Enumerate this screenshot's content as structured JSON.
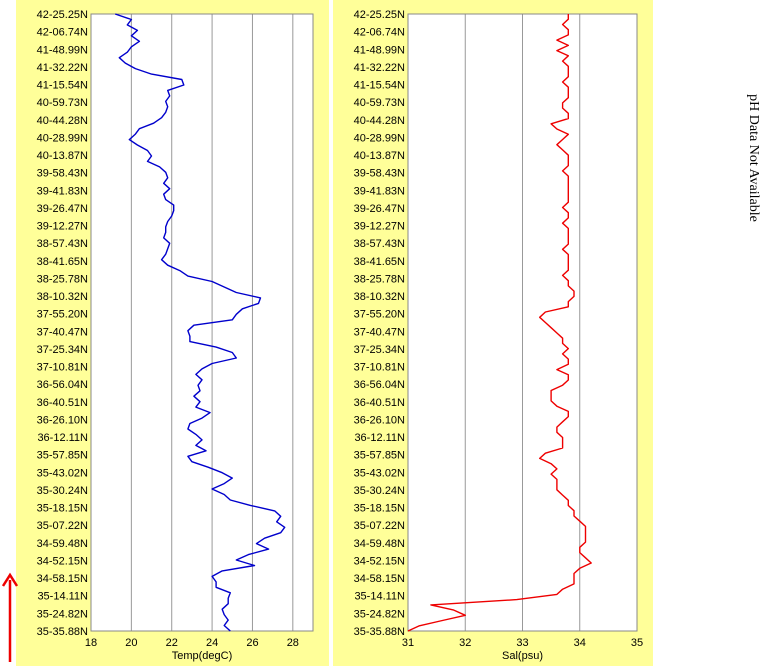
{
  "note": "pH Data Not Available",
  "colors": {
    "panel_bg": "#ffff99",
    "temp_line": "#0000cc",
    "sal_line": "#ee0000",
    "grid": "#999999",
    "arrow": "#ee0000"
  },
  "lat_labels": [
    "42-25.25N",
    "42-06.74N",
    "41-48.99N",
    "41-32.22N",
    "41-15.54N",
    "40-59.73N",
    "40-44.28N",
    "40-28.99N",
    "40-13.87N",
    "39-58.43N",
    "39-41.83N",
    "39-26.47N",
    "39-12.27N",
    "38-57.43N",
    "38-41.65N",
    "38-25.78N",
    "38-10.32N",
    "37-55.20N",
    "37-40.47N",
    "37-25.34N",
    "37-10.81N",
    "36-56.04N",
    "36-40.51N",
    "36-26.10N",
    "36-12.11N",
    "35-57.85N",
    "35-43.02N",
    "35-30.24N",
    "35-18.15N",
    "35-07.22N",
    "34-59.48N",
    "34-52.15N",
    "34-58.15N",
    "35-14.11N",
    "35-24.82N",
    "35-35.88N"
  ],
  "chart_data": [
    {
      "type": "line",
      "xlabel": "Temp(degC)",
      "xlim": [
        18,
        29
      ],
      "xticks": [
        "18",
        "20",
        "22",
        "24",
        "26",
        "28"
      ],
      "grid": "vertical",
      "series": [
        {
          "values": [
            19.2,
            20.0,
            19.8,
            20.3,
            20.0,
            20.4,
            20.0,
            19.8,
            19.4,
            19.7,
            20.2,
            21.0,
            22.5,
            22.6,
            21.8,
            21.9,
            21.7,
            21.8,
            21.7,
            21.5,
            21.1,
            20.4,
            20.2,
            19.9,
            20.3,
            20.8,
            21.0,
            20.8,
            21.4,
            21.7,
            21.8,
            21.6,
            21.9,
            21.6,
            21.7,
            22.1,
            22.1,
            22.0,
            21.8,
            21.7,
            21.7,
            21.6,
            21.9,
            21.8,
            21.7,
            21.5,
            21.8,
            22.4,
            22.8,
            24.0,
            24.6,
            25.2,
            26.4,
            26.3,
            25.5,
            25.2,
            25.0,
            23.1,
            22.8,
            22.9,
            22.9,
            24.2,
            25.0,
            25.2,
            24.0,
            23.5,
            23.2,
            23.5,
            23.3,
            23.4,
            23.1,
            23.4,
            23.2,
            23.9,
            23.5,
            22.9,
            22.8,
            23.2,
            23.5,
            23.2,
            23.7,
            22.8,
            23.0,
            23.8,
            24.5,
            25.0,
            24.6,
            24.0,
            24.6,
            24.9,
            25.9,
            27.1,
            27.4,
            27.2,
            27.6,
            27.4,
            26.6,
            26.2,
            26.8,
            25.8,
            25.2,
            26.1,
            24.5,
            24.0,
            24.2,
            24.2,
            24.9,
            24.8,
            24.8,
            24.5,
            24.6,
            24.8,
            24.6,
            24.9
          ]
        }
      ]
    },
    {
      "type": "line",
      "xlabel": "Sal(psu)",
      "xlim": [
        31,
        35
      ],
      "xticks": [
        "31",
        "32",
        "33",
        "34",
        "35"
      ],
      "grid": "vertical",
      "series": [
        {
          "values": [
            33.8,
            33.8,
            33.7,
            33.8,
            33.8,
            33.6,
            33.8,
            33.6,
            33.8,
            33.7,
            33.8,
            33.8,
            33.8,
            33.7,
            33.8,
            33.8,
            33.8,
            33.7,
            33.7,
            33.8,
            33.8,
            33.5,
            33.6,
            33.8,
            33.7,
            33.6,
            33.7,
            33.8,
            33.8,
            33.8,
            33.7,
            33.8,
            33.8,
            33.8,
            33.8,
            33.8,
            33.8,
            33.7,
            33.8,
            33.8,
            33.7,
            33.8,
            33.8,
            33.8,
            33.8,
            33.7,
            33.8,
            33.8,
            33.8,
            33.8,
            33.7,
            33.8,
            33.8,
            33.9,
            33.9,
            33.8,
            33.8,
            33.4,
            33.3,
            33.4,
            33.5,
            33.6,
            33.7,
            33.7,
            33.8,
            33.7,
            33.8,
            33.8,
            33.6,
            33.8,
            33.8,
            33.7,
            33.5,
            33.5,
            33.5,
            33.6,
            33.8,
            33.8,
            33.7,
            33.6,
            33.6,
            33.7,
            33.7,
            33.7,
            33.4,
            33.3,
            33.5,
            33.6,
            33.5,
            33.6,
            33.6,
            33.6,
            33.7,
            33.8,
            33.8,
            33.9,
            33.9,
            34.0,
            34.1,
            34.1,
            34.1,
            34.1,
            34.0,
            34.0,
            34.1,
            34.2,
            34.0,
            33.9,
            33.9,
            33.9,
            33.7,
            33.6,
            32.9,
            31.4,
            31.8,
            32.0,
            31.6,
            31.2,
            31.0
          ]
        }
      ]
    }
  ]
}
